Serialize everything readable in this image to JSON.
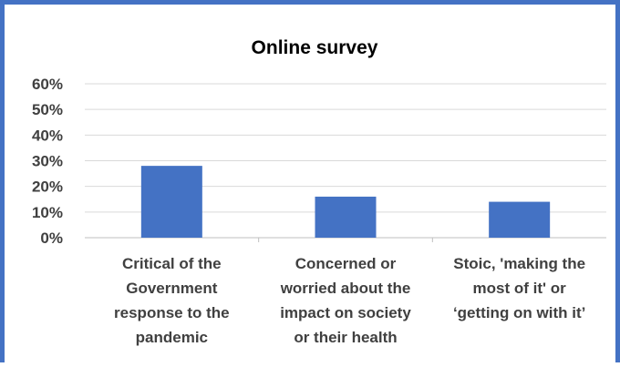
{
  "chart_data": {
    "type": "bar",
    "title": "Online survey",
    "categories": [
      [
        "Critical of the",
        "Government",
        "response to the",
        "pandemic"
      ],
      [
        "Concerned or",
        "worried about the",
        "impact on society",
        "or their health"
      ],
      [
        "Stoic, 'making the",
        "most of it' or",
        "‘getting on with it’"
      ]
    ],
    "values": [
      28,
      16,
      14
    ],
    "ylim": [
      0,
      60
    ],
    "yticks": [
      "0%",
      "10%",
      "20%",
      "30%",
      "40%",
      "50%",
      "60%"
    ],
    "grid": true,
    "legend": "none",
    "bar_color": "#4472c4"
  }
}
